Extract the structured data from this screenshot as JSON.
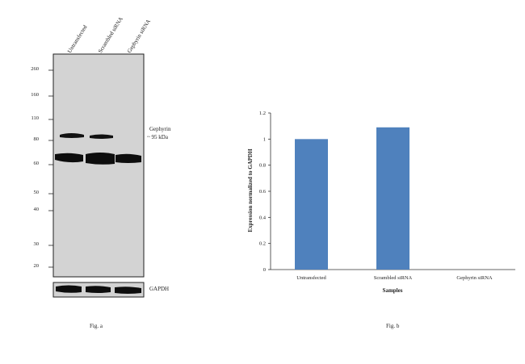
{
  "fig_a": {
    "caption": "Fig. a",
    "lane_labels": [
      "Untransfected",
      "Scrambled siRNA",
      "Gephyrin siRNA"
    ],
    "mw_markers": [
      "260",
      "160",
      "110",
      "80",
      "60",
      "50",
      "40",
      "30",
      "20"
    ],
    "target_label": "Gephyrin",
    "target_size": "~ 95 kDa",
    "control_label": "GAPDH"
  },
  "fig_b": {
    "caption": "Fig. b"
  },
  "chart_data": {
    "type": "bar",
    "categories": [
      "Untransfected",
      "Scrambled siRNA",
      "Gephyrin siRNA"
    ],
    "values": [
      1.0,
      1.09,
      0
    ],
    "title": "",
    "xlabel": "Samples",
    "ylabel": "Expression normalized to GAPDH",
    "ylim": [
      0,
      1.2
    ],
    "yticks": [
      "0",
      "0.2",
      "0.4",
      "0.6",
      "0.8",
      "1",
      "1.2"
    ],
    "bar_color": "#4f81bd",
    "grid": false
  }
}
